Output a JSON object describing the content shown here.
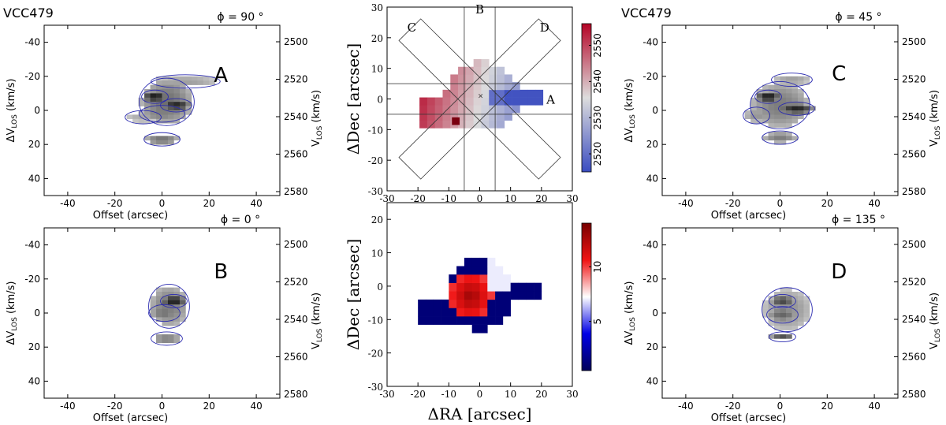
{
  "colors": {
    "blue_line": "#2b2bb0",
    "pv_dark": "#111111",
    "axis": "#000000"
  },
  "chart_data": [
    {
      "id": "pv-A",
      "type": "heatmap",
      "galaxy": "VCC479",
      "phi_label": "ϕ = 90 °",
      "letter": "A",
      "xlabel": "Offset (arcsec)",
      "ylabel": "ΔV",
      "ylabel_sub": "LOS",
      "ylabel_unit": " (km/s)",
      "ylabel_right": "V",
      "ylabel_right_sub": "LOS",
      "ylabel_right_unit": " (km/s)",
      "xlim": [
        -50,
        50
      ],
      "ylim": [
        50,
        -50
      ],
      "xticks": [
        "-40",
        "-20",
        "0",
        "20",
        "40"
      ],
      "yticks": [
        "-40",
        "-20",
        "0",
        "20",
        "40"
      ],
      "yticks_right": [
        "2500",
        "2520",
        "2540",
        "2560",
        "2580"
      ],
      "blobs": [
        {
          "x": 2,
          "y": -5,
          "rx": 11,
          "ry": 13,
          "v": 0.55
        },
        {
          "x": -3,
          "y": -8,
          "rx": 5,
          "ry": 3,
          "v": 0.95
        },
        {
          "x": 6,
          "y": -3,
          "rx": 6,
          "ry": 3,
          "v": 0.9
        },
        {
          "x": 0,
          "y": 2,
          "rx": 9,
          "ry": 4,
          "v": 0.5
        },
        {
          "x": 10,
          "y": -17,
          "rx": 14,
          "ry": 3,
          "v": 0.35
        },
        {
          "x": 0,
          "y": 17,
          "rx": 7,
          "ry": 3,
          "v": 0.55
        },
        {
          "x": -8,
          "y": 4,
          "rx": 7,
          "ry": 3,
          "v": 0.3
        }
      ]
    },
    {
      "id": "pv-B",
      "type": "heatmap",
      "phi_label": "ϕ = 0 °",
      "letter": "B",
      "xlabel": "Offset (arcsec)",
      "ylabel": "ΔV",
      "ylabel_sub": "LOS",
      "ylabel_unit": " (km/s)",
      "ylabel_right": "V",
      "ylabel_right_sub": "LOS",
      "ylabel_right_unit": " (km/s)",
      "xlim": [
        -50,
        50
      ],
      "ylim": [
        50,
        -50
      ],
      "xticks": [
        "-40",
        "-20",
        "0",
        "20",
        "40"
      ],
      "yticks": [
        "-40",
        "-20",
        "0",
        "20",
        "40"
      ],
      "yticks_right": [
        "2500",
        "2520",
        "2540",
        "2560",
        "2580"
      ],
      "blobs": [
        {
          "x": 3,
          "y": -4,
          "rx": 8,
          "ry": 12,
          "v": 0.5
        },
        {
          "x": 5,
          "y": -7,
          "rx": 5,
          "ry": 3,
          "v": 0.95
        },
        {
          "x": 1,
          "y": 0,
          "rx": 6,
          "ry": 4,
          "v": 0.55
        },
        {
          "x": 2,
          "y": 15,
          "rx": 6,
          "ry": 3,
          "v": 0.5
        }
      ]
    },
    {
      "id": "pv-C",
      "type": "heatmap",
      "galaxy": "VCC479",
      "phi_label": "ϕ = 45 °",
      "letter": "C",
      "xlabel": "Offset (arcsec)",
      "ylabel": "ΔV",
      "ylabel_sub": "LOS",
      "ylabel_unit": " (km/s)",
      "ylabel_right": "V",
      "ylabel_right_sub": "LOS",
      "ylabel_right_unit": " (km/s)",
      "xlim": [
        -50,
        50
      ],
      "ylim": [
        50,
        -50
      ],
      "xticks": [
        "-40",
        "-20",
        "0",
        "20",
        "40"
      ],
      "yticks": [
        "-40",
        "-20",
        "0",
        "20",
        "40"
      ],
      "yticks_right": [
        "2500",
        "2520",
        "2540",
        "2560",
        "2580"
      ],
      "blobs": [
        {
          "x": 0,
          "y": -3,
          "rx": 12,
          "ry": 13,
          "v": 0.5
        },
        {
          "x": -5,
          "y": -8,
          "rx": 5,
          "ry": 3,
          "v": 0.95
        },
        {
          "x": 7,
          "y": -1,
          "rx": 7,
          "ry": 3,
          "v": 0.9
        },
        {
          "x": 5,
          "y": -18,
          "rx": 8,
          "ry": 3,
          "v": 0.35
        },
        {
          "x": 0,
          "y": 16,
          "rx": 7,
          "ry": 3,
          "v": 0.5
        },
        {
          "x": -10,
          "y": 3,
          "rx": 5,
          "ry": 4,
          "v": 0.4
        }
      ]
    },
    {
      "id": "pv-D",
      "type": "heatmap",
      "phi_label": "ϕ = 135 °",
      "letter": "D",
      "xlabel": "Offset (arcsec)",
      "ylabel": "ΔV",
      "ylabel_sub": "LOS",
      "ylabel_unit": " (km/s)",
      "ylabel_right": "V",
      "ylabel_right_sub": "LOS",
      "ylabel_right_unit": " (km/s)",
      "xlim": [
        -50,
        50
      ],
      "ylim": [
        50,
        -50
      ],
      "xticks": [
        "-40",
        "-20",
        "0",
        "20",
        "40"
      ],
      "yticks": [
        "-40",
        "-20",
        "0",
        "20",
        "40"
      ],
      "yticks_right": [
        "2500",
        "2520",
        "2540",
        "2560",
        "2580"
      ],
      "blobs": [
        {
          "x": 3,
          "y": -2,
          "rx": 10,
          "ry": 12,
          "v": 0.4
        },
        {
          "x": 1,
          "y": -7,
          "rx": 5,
          "ry": 3,
          "v": 0.75
        },
        {
          "x": 1,
          "y": 1,
          "rx": 6,
          "ry": 4,
          "v": 0.6
        },
        {
          "x": 1,
          "y": 14,
          "rx": 5,
          "ry": 2,
          "v": 0.7
        }
      ]
    },
    {
      "id": "velocity-map",
      "type": "heatmap",
      "xlabel": "",
      "ylabel": "ΔDec [arcsec]",
      "xlim": [
        -30,
        30
      ],
      "ylim": [
        -30,
        30
      ],
      "xticks": [
        "-30",
        "-20",
        "-10",
        "0",
        "10",
        "20",
        "30"
      ],
      "yticks": [
        "-30",
        "-20",
        "-10",
        "0",
        "10",
        "20",
        "30"
      ],
      "colorbar_ticks": [
        "2520",
        "2530",
        "2540",
        "2550"
      ],
      "colorbar_range": [
        2515,
        2556
      ],
      "slit_labels": [
        "A",
        "B",
        "C",
        "D"
      ]
    },
    {
      "id": "dispersion-map",
      "type": "heatmap",
      "xlabel": "ΔRA [arcsec]",
      "ylabel": "ΔDec [arcsec]",
      "xlim": [
        -30,
        30
      ],
      "ylim": [
        -30,
        25
      ],
      "xticks": [
        "-30",
        "-20",
        "-10",
        "0",
        "10",
        "20",
        "30"
      ],
      "yticks": [
        "-30",
        "-20",
        "-10",
        "0",
        "10",
        "20"
      ],
      "colorbar_ticks": [
        "5",
        "10"
      ],
      "colorbar_range": [
        0.5,
        14
      ]
    }
  ]
}
